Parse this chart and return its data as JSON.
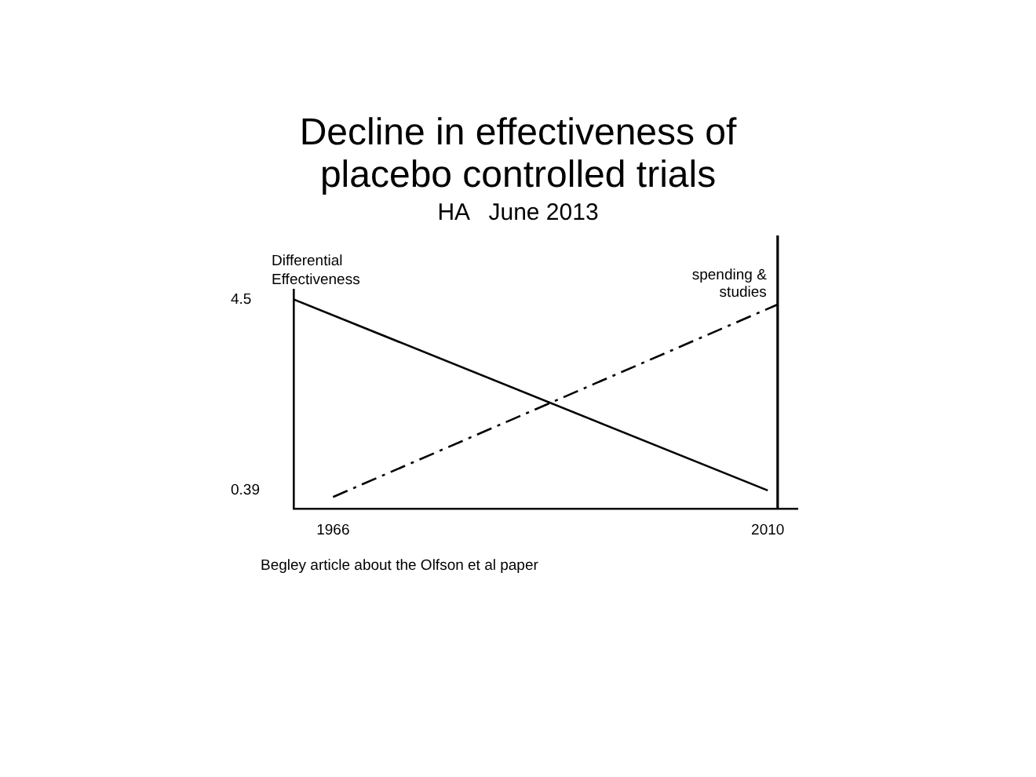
{
  "chart_data": {
    "type": "line",
    "title": "Decline in effectiveness of placebo controlled trials",
    "subtitle": "HA   June 2013",
    "ylabel": "Differential Effectiveness",
    "annotations": [
      "Begley article about the Olfson et al paper"
    ],
    "xlim": [
      1962,
      2013
    ],
    "xticks": [
      1966,
      2010
    ],
    "ylim": [
      0,
      5.2
    ],
    "yticks": [
      0.39,
      4.5
    ],
    "series": [
      {
        "color": "#000000",
        "x": [
          1962,
          2010
        ],
        "values": [
          4.5,
          0.39
        ],
        "line_style": "solid"
      },
      {
        "name": "spending & studies",
        "color": "#000000",
        "x": [
          1966,
          2011
        ],
        "values": [
          0.25,
          4.39
        ],
        "line_style": "dashed"
      }
    ],
    "ref_lines": [
      {
        "axis": "x",
        "value": 2011,
        "color": "#000000"
      }
    ],
    "grid": false,
    "legend": false,
    "marker": "none"
  }
}
